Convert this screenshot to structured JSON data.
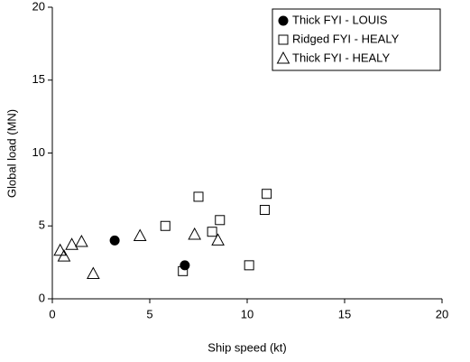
{
  "chart_data": {
    "type": "scatter",
    "xlabel": "Ship speed (kt)",
    "ylabel": "Global load (MN)",
    "xlim": [
      0,
      20
    ],
    "xticks": [
      0,
      5,
      10,
      15,
      20
    ],
    "ylim": [
      0,
      20
    ],
    "yticks": [
      0,
      5,
      10,
      15,
      20
    ],
    "grid": false,
    "legend": "upper right",
    "series": [
      {
        "name": "Thick FYI - LOUIS",
        "marker": "filled-circle",
        "color": "#000000",
        "x": [
          3.2,
          6.8
        ],
        "values": [
          4.0,
          2.3
        ]
      },
      {
        "name": "Ridged FYI - HEALY",
        "marker": "square",
        "color": "#000000",
        "x": [
          5.8,
          7.5,
          8.2,
          8.6,
          6.7,
          10.1,
          11.0,
          10.9
        ],
        "values": [
          5.0,
          7.0,
          4.6,
          5.4,
          1.9,
          2.3,
          7.2,
          6.1
        ]
      },
      {
        "name": "Thick FYI - HEALY",
        "marker": "triangle",
        "color": "#000000",
        "x": [
          0.4,
          0.6,
          1.0,
          1.5,
          2.1,
          4.5,
          7.3,
          8.5
        ],
        "values": [
          3.3,
          2.9,
          3.7,
          3.9,
          1.7,
          4.3,
          4.4,
          4.0
        ]
      }
    ]
  }
}
